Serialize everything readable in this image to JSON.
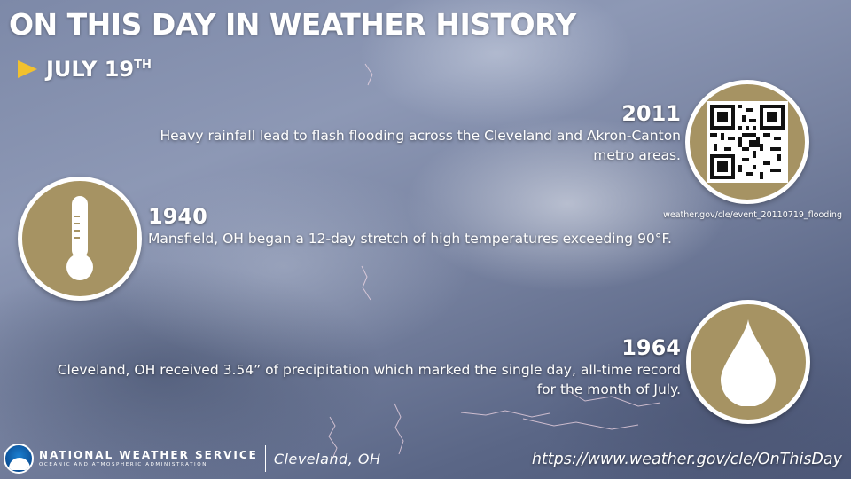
{
  "header": {
    "title": "ON THIS DAY IN WEATHER HISTORY",
    "date": "JULY 19",
    "date_suffix": "TH"
  },
  "events": [
    {
      "year": "2011",
      "description": "Heavy rainfall lead to flash flooding across the Cleveland and Akron-Canton metro areas.",
      "icon": "qr-code-icon",
      "qr_caption": "weather.gov/cle/event_20110719_flooding"
    },
    {
      "year": "1940",
      "description": "Mansfield, OH began a 12-day stretch of high temperatures exceeding 90°F.",
      "icon": "thermometer-icon"
    },
    {
      "year": "1964",
      "description": "Cleveland, OH received 3.54” of precipitation which marked the single day, all-time record for the month of July.",
      "icon": "raindrop-icon"
    }
  ],
  "footer": {
    "agency": "NATIONAL WEATHER SERVICE",
    "agency_sub": "OCEANIC AND ATMOSPHERIC ADMINISTRATION",
    "office": "Cleveland, OH",
    "url": "https://www.weather.gov/cle/OnThisDay"
  },
  "colors": {
    "accent_gold": "#a69363",
    "arrow_yellow": "#f2c12e",
    "text": "#ffffff",
    "noaa_blue": "#0b4f96"
  }
}
